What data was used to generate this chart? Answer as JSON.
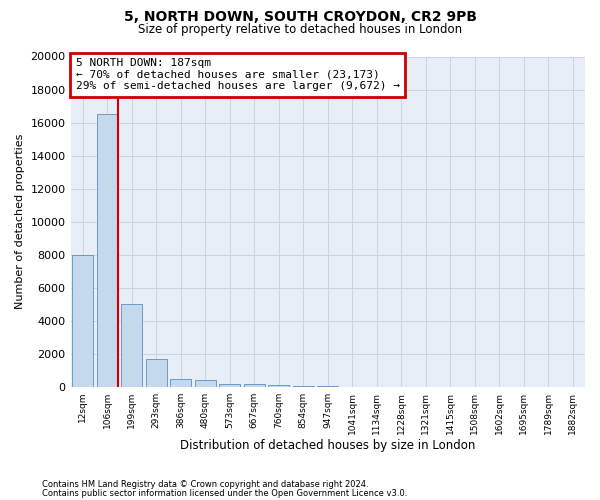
{
  "title1": "5, NORTH DOWN, SOUTH CROYDON, CR2 9PB",
  "title2": "Size of property relative to detached houses in London",
  "xlabel": "Distribution of detached houses by size in London",
  "ylabel": "Number of detached properties",
  "categories": [
    "12sqm",
    "106sqm",
    "199sqm",
    "293sqm",
    "386sqm",
    "480sqm",
    "573sqm",
    "667sqm",
    "760sqm",
    "854sqm",
    "947sqm",
    "1041sqm",
    "1134sqm",
    "1228sqm",
    "1321sqm",
    "1415sqm",
    "1508sqm",
    "1602sqm",
    "1695sqm",
    "1789sqm",
    "1882sqm"
  ],
  "values": [
    8000,
    16500,
    5000,
    1700,
    500,
    400,
    200,
    150,
    120,
    80,
    50,
    0,
    0,
    0,
    0,
    0,
    0,
    0,
    0,
    0,
    0
  ],
  "bar_color": "#c5d9ed",
  "bar_edge_color": "#5b8dc4",
  "vline_x_pos": 1.43,
  "vline_color": "#cc0000",
  "annotation_title": "5 NORTH DOWN: 187sqm",
  "annotation_line1": "← 70% of detached houses are smaller (23,173)",
  "annotation_line2": "29% of semi-detached houses are larger (9,672) →",
  "annotation_box_edgecolor": "#cc0000",
  "ylim": [
    0,
    20000
  ],
  "yticks": [
    0,
    2000,
    4000,
    6000,
    8000,
    10000,
    12000,
    14000,
    16000,
    18000,
    20000
  ],
  "footer1": "Contains HM Land Registry data © Crown copyright and database right 2024.",
  "footer2": "Contains public sector information licensed under the Open Government Licence v3.0.",
  "grid_color": "#c8d4e4",
  "bg_color": "#e8eef8"
}
